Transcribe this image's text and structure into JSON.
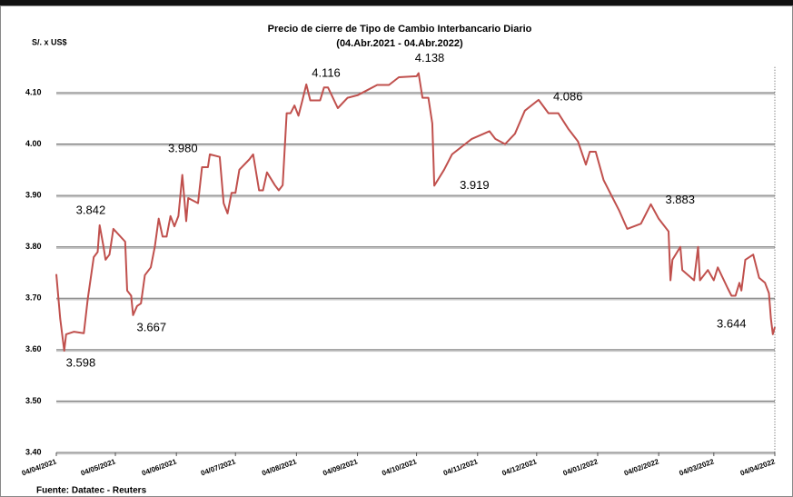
{
  "chart_data": {
    "type": "line",
    "title": "Precio de cierre de Tipo de Cambio Interbancario Diario",
    "subtitle": "(04.Abr.2021 - 04.Abr.2022)",
    "y_label": "S/. x US$",
    "source": "Fuente: Datatec - Reuters",
    "color": "#c0504d",
    "grid": true,
    "x": [
      "04/04/2021",
      "06/04/2021",
      "08/04/2021",
      "09/04/2021",
      "13/04/2021",
      "18/04/2021",
      "20/04/2021",
      "23/04/2021",
      "25/04/2021",
      "26/04/2021",
      "28/04/2021",
      "29/04/2021",
      "01/05/2021",
      "03/05/2021",
      "09/05/2021",
      "10/05/2021",
      "12/05/2021",
      "13/05/2021",
      "15/05/2021",
      "17/05/2021",
      "19/05/2021",
      "22/05/2021",
      "24/05/2021",
      "26/05/2021",
      "28/05/2021",
      "30/05/2021",
      "01/06/2021",
      "03/06/2021",
      "05/06/2021",
      "07/06/2021",
      "09/06/2021",
      "10/06/2021",
      "15/06/2021",
      "17/06/2021",
      "20/06/2021",
      "21/06/2021",
      "26/06/2021",
      "28/06/2021",
      "30/06/2021",
      "02/07/2021",
      "04/07/2021",
      "06/07/2021",
      "11/07/2021",
      "13/07/2021",
      "16/07/2021",
      "18/07/2021",
      "20/07/2021",
      "24/07/2021",
      "26/07/2021",
      "28/07/2021",
      "30/07/2021",
      "01/08/2021",
      "03/08/2021",
      "05/08/2021",
      "07/08/2021",
      "09/08/2021",
      "11/08/2021",
      "16/08/2021",
      "18/08/2021",
      "20/08/2021",
      "25/08/2021",
      "30/08/2021",
      "04/09/2021",
      "09/09/2021",
      "14/09/2021",
      "20/09/2021",
      "25/09/2021",
      "04/10/2021",
      "05/10/2021",
      "07/10/2021",
      "10/10/2021",
      "12/10/2021",
      "13/10/2021",
      "18/10/2021",
      "22/10/2021",
      "27/10/2021",
      "01/11/2021",
      "10/11/2021",
      "13/11/2021",
      "18/11/2021",
      "23/11/2021",
      "28/11/2021",
      "05/12/2021",
      "10/12/2021",
      "15/12/2021",
      "20/12/2021",
      "25/12/2021",
      "29/12/2021",
      "31/12/2021",
      "03/01/2022",
      "07/01/2022",
      "11/01/2022",
      "15/01/2022",
      "19/01/2022",
      "26/01/2022",
      "31/01/2022",
      "04/02/2022",
      "09/02/2022",
      "10/02/2022",
      "11/02/2022",
      "15/02/2022",
      "16/02/2022",
      "22/02/2022",
      "24/02/2022",
      "25/02/2022",
      "01/03/2022",
      "04/03/2022",
      "06/03/2022",
      "11/03/2022",
      "13/03/2022",
      "15/03/2022",
      "17/03/2022",
      "18/03/2022",
      "20/03/2022",
      "24/03/2022",
      "27/03/2022",
      "30/03/2022",
      "01/04/2022",
      "02/04/2022",
      "03/04/2022",
      "04/04/2022"
    ],
    "values": [
      3.747,
      3.66,
      3.598,
      3.63,
      3.635,
      3.632,
      3.7,
      3.78,
      3.79,
      3.842,
      3.8,
      3.775,
      3.785,
      3.835,
      3.81,
      3.715,
      3.705,
      3.667,
      3.685,
      3.69,
      3.745,
      3.76,
      3.8,
      3.855,
      3.82,
      3.82,
      3.86,
      3.84,
      3.86,
      3.94,
      3.85,
      3.895,
      3.885,
      3.955,
      3.955,
      3.98,
      3.975,
      3.885,
      3.865,
      3.905,
      3.905,
      3.95,
      3.97,
      3.98,
      3.91,
      3.91,
      3.945,
      3.92,
      3.91,
      3.92,
      4.06,
      4.06,
      4.075,
      4.055,
      4.085,
      4.116,
      4.085,
      4.085,
      4.11,
      4.11,
      4.07,
      4.09,
      4.095,
      4.105,
      4.115,
      4.115,
      4.13,
      4.132,
      4.138,
      4.09,
      4.09,
      4.04,
      3.919,
      3.95,
      3.98,
      3.995,
      4.01,
      4.025,
      4.01,
      4.0,
      4.02,
      4.065,
      4.086,
      4.06,
      4.06,
      4.03,
      4.005,
      3.96,
      3.985,
      3.985,
      3.93,
      3.9,
      3.87,
      3.835,
      3.845,
      3.883,
      3.855,
      3.83,
      3.735,
      3.775,
      3.8,
      3.755,
      3.735,
      3.8,
      3.735,
      3.755,
      3.735,
      3.76,
      3.72,
      3.705,
      3.705,
      3.73,
      3.715,
      3.775,
      3.785,
      3.74,
      3.73,
      3.71,
      3.66,
      3.63,
      3.644
    ],
    "xlim": [
      "04/04/2021",
      "04/04/2022"
    ],
    "xticks": [
      "04/04/2021",
      "04/05/2021",
      "04/06/2021",
      "04/07/2021",
      "04/08/2021",
      "04/09/2021",
      "04/10/2021",
      "04/11/2021",
      "04/12/2021",
      "04/01/2022",
      "04/02/2022",
      "04/03/2022",
      "04/04/2022"
    ],
    "ylim": [
      3.4,
      4.15
    ],
    "yticks": [
      {
        "value": 3.4,
        "label": "3.40"
      },
      {
        "value": 3.5,
        "label": "3.50"
      },
      {
        "value": 3.6,
        "label": "3.60"
      },
      {
        "value": 3.7,
        "label": "3.70"
      },
      {
        "value": 3.8,
        "label": "3.80"
      },
      {
        "value": 3.9,
        "label": "3.90"
      },
      {
        "value": 4.0,
        "label": "4.00"
      },
      {
        "value": 4.1,
        "label": "4.10"
      }
    ],
    "annotations": [
      {
        "x": "08/04/2021",
        "y": 3.598
      },
      {
        "x": "26/04/2021",
        "y": 3.842
      },
      {
        "x": "13/05/2021",
        "y": 3.667
      },
      {
        "x": "21/06/2021",
        "y": 3.98,
        "label": "3.980"
      },
      {
        "x": "09/08/2021",
        "y": 4.116
      },
      {
        "x": "05/10/2021",
        "y": 4.138
      },
      {
        "x": "13/10/2021",
        "y": 3.919
      },
      {
        "x": "05/12/2021",
        "y": 4.086
      },
      {
        "x": "31/01/2022",
        "y": 3.883
      },
      {
        "x": "04/04/2022",
        "y": 3.644
      }
    ]
  }
}
